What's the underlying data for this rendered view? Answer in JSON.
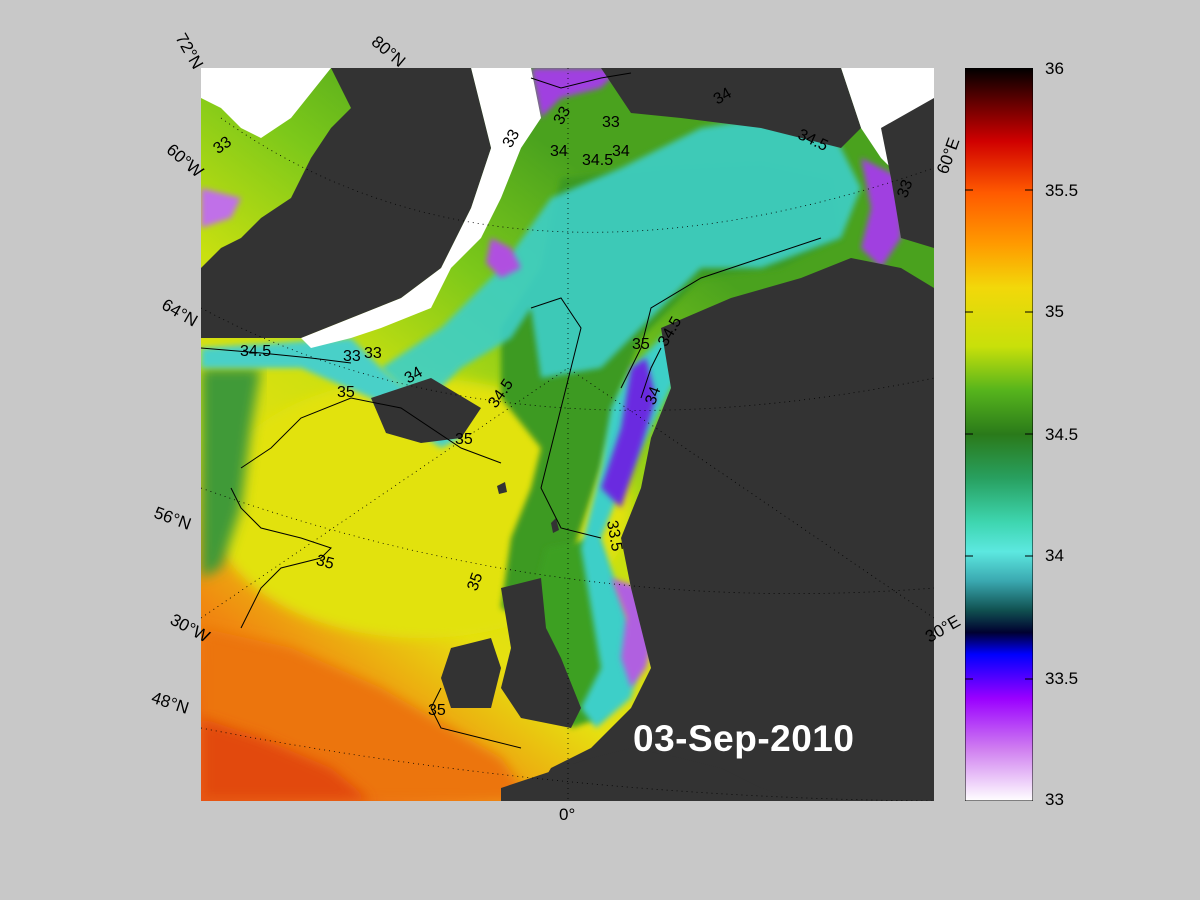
{
  "date_label": "03-Sep-2010",
  "graticule_labels": {
    "lat_72n": "72°N",
    "lat_80n": "80°N",
    "lat_64n": "64°N",
    "lat_56n": "56°N",
    "lat_48n": "48°N",
    "lon_60w": "60°W",
    "lon_30w": "30°W",
    "lon_0": "0°",
    "lon_30e": "30°E",
    "lon_60e": "60°E"
  },
  "contour_labels": {
    "c33_a": "33",
    "c33_b": "33",
    "c33_c": "33",
    "c33_d": "33",
    "c33_e": "33",
    "c34_a": "34",
    "c34_b": "34",
    "c34_c": "34",
    "c34_d": "34",
    "c345_a": "34.5",
    "c345_b": "34.5",
    "c345_c": "34.5",
    "c345_d": "34.5",
    "c345_e": "34.5",
    "c35_a": "35",
    "c35_b": "35",
    "c35_c": "35",
    "c35_d": "35",
    "c35_e": "35",
    "c35_f": "35",
    "c335_a": "33.5",
    "c33_f": "33",
    "c33_g": "33",
    "c34_e": "34"
  },
  "colorbar": {
    "min": 33,
    "max": 36,
    "ticks": [
      "36",
      "35.5",
      "35",
      "34.5",
      "34",
      "33.5",
      "33"
    ],
    "colors": {
      "land": "#333333",
      "ice": "#ffffff",
      "background": "#c8c8c8"
    }
  }
}
